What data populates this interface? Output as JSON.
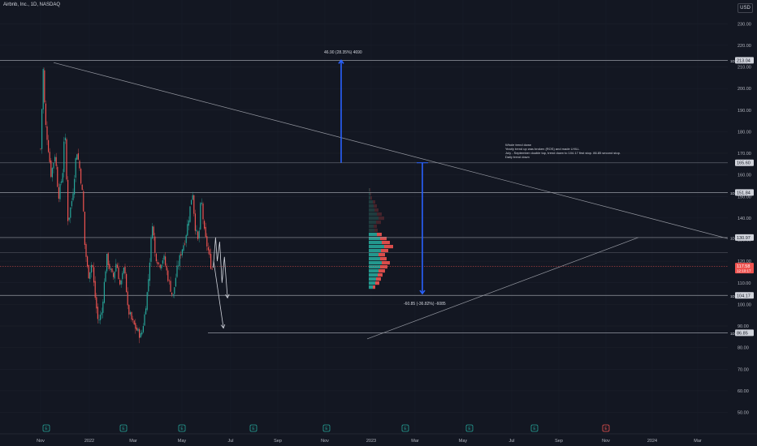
{
  "header": {
    "symbol": "Airbnb, Inc., 1D, NASDAQ",
    "currency_button": "USD"
  },
  "notes": [
    "Whole trend down",
    "Yearly trend up was broken (ROS) and made LH/LL",
    "July - September double top, trend down to 104.17 first stop. 86.85 second stop.",
    "Daily trend down"
  ],
  "measures": {
    "up": "46.90 (28.35%) 4690",
    "down": "-60.85 (-36.82%) -6085"
  },
  "colors": {
    "background": "#131722",
    "up": "#26a69a",
    "down": "#ef5350",
    "arrow": "#2962ff",
    "level": "#b2b5be"
  },
  "chart_data": {
    "type": "candlestick",
    "y_axis": {
      "ticks": [
        230,
        220,
        210,
        200,
        190,
        180,
        170,
        160,
        150,
        140,
        130,
        120,
        110,
        100,
        90,
        80,
        70,
        60,
        50
      ],
      "range": [
        45,
        234
      ]
    },
    "x_axis": {
      "labels": [
        "Nov",
        "2022",
        "Mar",
        "May",
        "Jul",
        "Sep",
        "Nov",
        "2023",
        "Mar",
        "May",
        "Jul",
        "Sep",
        "Nov",
        "2024",
        "Mar"
      ]
    },
    "levels": [
      {
        "value": 213.04,
        "label": "213.04",
        "tag": "1D"
      },
      {
        "value": 165.6,
        "label": "165.60",
        "tag": ""
      },
      {
        "value": 151.84,
        "label": "151.84",
        "tag": "1D"
      },
      {
        "value": 130.97,
        "label": "130.97",
        "tag": "1D"
      },
      {
        "value": 104.17,
        "label": "104.17",
        "tag": "1D"
      },
      {
        "value": 86.85,
        "label": "86.85",
        "tag": "1D"
      }
    ],
    "current_price": {
      "value": 117.58,
      "label": "117.58",
      "countdown": "12:10:17"
    },
    "price_path": [
      [
        "2021-11-01",
        172
      ],
      [
        "2021-11-08",
        196
      ],
      [
        "2021-11-12",
        209
      ],
      [
        "2021-11-20",
        185
      ],
      [
        "2021-12-01",
        175
      ],
      [
        "2021-12-15",
        160
      ],
      [
        "2022-01-01",
        170
      ],
      [
        "2022-01-15",
        150
      ],
      [
        "2022-02-01",
        160
      ],
      [
        "2022-02-10",
        184
      ],
      [
        "2022-02-24",
        138
      ],
      [
        "2022-03-15",
        150
      ],
      [
        "2022-04-01",
        172
      ],
      [
        "2022-04-15",
        162
      ],
      [
        "2022-04-28",
        148
      ],
      [
        "2022-05-05",
        128
      ],
      [
        "2022-05-20",
        113
      ],
      [
        "2022-06-05",
        120
      ],
      [
        "2022-06-15",
        106
      ],
      [
        "2022-06-30",
        92
      ],
      [
        "2022-07-15",
        96
      ],
      [
        "2022-08-05",
        122
      ],
      [
        "2022-08-20",
        116
      ],
      [
        "2022-09-01",
        112
      ],
      [
        "2022-09-15",
        120
      ],
      [
        "2022-10-01",
        108
      ],
      [
        "2022-10-20",
        118
      ],
      [
        "2022-11-01",
        98
      ],
      [
        "2022-11-20",
        92
      ],
      [
        "2022-12-10",
        88
      ],
      [
        "2022-12-28",
        85
      ],
      [
        "2023-01-10",
        94
      ],
      [
        "2023-01-25",
        108
      ],
      [
        "2023-02-14",
        140
      ],
      [
        "2023-02-22",
        124
      ],
      [
        "2023-03-15",
        118
      ],
      [
        "2023-04-01",
        122
      ],
      [
        "2023-04-20",
        112
      ],
      [
        "2023-05-10",
        103
      ],
      [
        "2023-05-25",
        115
      ],
      [
        "2023-06-15",
        125
      ],
      [
        "2023-06-30",
        130
      ],
      [
        "2023-07-15",
        140
      ],
      [
        "2023-07-31",
        153
      ],
      [
        "2023-08-10",
        137
      ],
      [
        "2023-08-25",
        128
      ],
      [
        "2023-09-05",
        150
      ],
      [
        "2023-09-20",
        132
      ],
      [
        "2023-10-05",
        125
      ],
      [
        "2023-10-20",
        116
      ],
      [
        "2023-10-26",
        117.58
      ]
    ],
    "projection_paths": [
      [
        [
          "2023-10-26",
          117
        ],
        [
          "2023-11-05",
          131
        ],
        [
          "2023-11-12",
          120
        ],
        [
          "2023-11-22",
          129
        ],
        [
          "2023-12-02",
          110
        ],
        [
          "2023-12-12",
          122
        ],
        [
          "2023-12-25",
          103
        ]
      ],
      [
        [
          "2023-10-28",
          120
        ],
        [
          "2023-12-08",
          89
        ]
      ]
    ]
  }
}
